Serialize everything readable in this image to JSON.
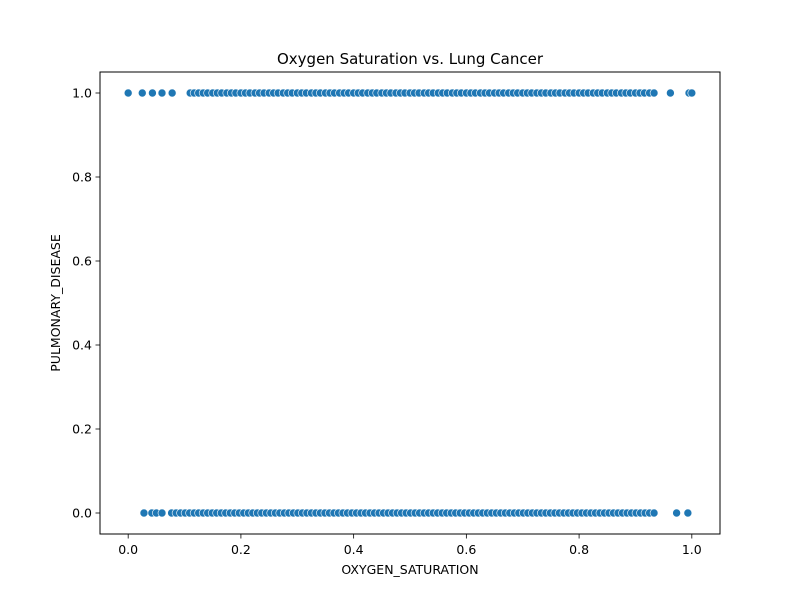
{
  "chart_data": {
    "type": "scatter",
    "title": "Oxygen Saturation vs. Lung Cancer",
    "xlabel": "OXYGEN_SATURATION",
    "ylabel": "PULMONARY_DISEASE",
    "xlim": [
      -0.05,
      1.05
    ],
    "ylim": [
      -0.05,
      1.05
    ],
    "xticks": [
      0.0,
      0.2,
      0.4,
      0.6,
      0.8,
      1.0
    ],
    "xtick_labels": [
      "0.0",
      "0.2",
      "0.4",
      "0.6",
      "0.8",
      "1.0"
    ],
    "yticks": [
      0.0,
      0.2,
      0.4,
      0.6,
      0.8,
      1.0
    ],
    "ytick_labels": [
      "0.0",
      "0.2",
      "0.4",
      "0.6",
      "0.8",
      "1.0"
    ],
    "grid": false,
    "marker_color": "#1f77b4",
    "marker_edge_color": "#ffffff",
    "series": [
      {
        "y": 1,
        "x": [
          0.0,
          0.025,
          0.043,
          0.06,
          0.078,
          0.11,
          0.117,
          0.125,
          0.133,
          0.141,
          0.15,
          0.158,
          0.166,
          0.175,
          0.183,
          0.191,
          0.2,
          0.208,
          0.216,
          0.225,
          0.233,
          0.241,
          0.25,
          0.258,
          0.266,
          0.275,
          0.283,
          0.291,
          0.3,
          0.308,
          0.316,
          0.325,
          0.333,
          0.341,
          0.35,
          0.358,
          0.366,
          0.375,
          0.383,
          0.391,
          0.4,
          0.408,
          0.416,
          0.425,
          0.433,
          0.441,
          0.45,
          0.458,
          0.466,
          0.475,
          0.483,
          0.491,
          0.5,
          0.508,
          0.516,
          0.525,
          0.533,
          0.541,
          0.55,
          0.558,
          0.566,
          0.575,
          0.583,
          0.591,
          0.6,
          0.608,
          0.616,
          0.625,
          0.633,
          0.641,
          0.65,
          0.658,
          0.666,
          0.675,
          0.683,
          0.691,
          0.7,
          0.708,
          0.716,
          0.725,
          0.733,
          0.741,
          0.75,
          0.758,
          0.766,
          0.775,
          0.783,
          0.791,
          0.8,
          0.808,
          0.816,
          0.825,
          0.833,
          0.841,
          0.85,
          0.858,
          0.866,
          0.875,
          0.883,
          0.891,
          0.9,
          0.908,
          0.916,
          0.925,
          0.933,
          0.962,
          0.995,
          1.0
        ]
      },
      {
        "y": 0,
        "x": [
          0.028,
          0.042,
          0.05,
          0.06,
          0.077,
          0.085,
          0.093,
          0.101,
          0.109,
          0.117,
          0.125,
          0.133,
          0.141,
          0.149,
          0.157,
          0.165,
          0.173,
          0.181,
          0.189,
          0.197,
          0.205,
          0.213,
          0.221,
          0.229,
          0.237,
          0.245,
          0.253,
          0.261,
          0.269,
          0.277,
          0.285,
          0.293,
          0.301,
          0.309,
          0.317,
          0.325,
          0.333,
          0.341,
          0.349,
          0.357,
          0.365,
          0.373,
          0.381,
          0.389,
          0.397,
          0.405,
          0.413,
          0.421,
          0.429,
          0.437,
          0.445,
          0.453,
          0.461,
          0.469,
          0.477,
          0.485,
          0.493,
          0.501,
          0.509,
          0.517,
          0.525,
          0.533,
          0.541,
          0.549,
          0.557,
          0.565,
          0.573,
          0.581,
          0.589,
          0.597,
          0.605,
          0.613,
          0.621,
          0.629,
          0.637,
          0.645,
          0.653,
          0.661,
          0.669,
          0.677,
          0.685,
          0.693,
          0.701,
          0.709,
          0.717,
          0.725,
          0.733,
          0.741,
          0.749,
          0.757,
          0.765,
          0.773,
          0.781,
          0.789,
          0.797,
          0.805,
          0.813,
          0.821,
          0.829,
          0.837,
          0.845,
          0.853,
          0.861,
          0.869,
          0.877,
          0.885,
          0.893,
          0.901,
          0.909,
          0.917,
          0.925,
          0.933,
          0.973,
          0.993
        ]
      }
    ]
  }
}
